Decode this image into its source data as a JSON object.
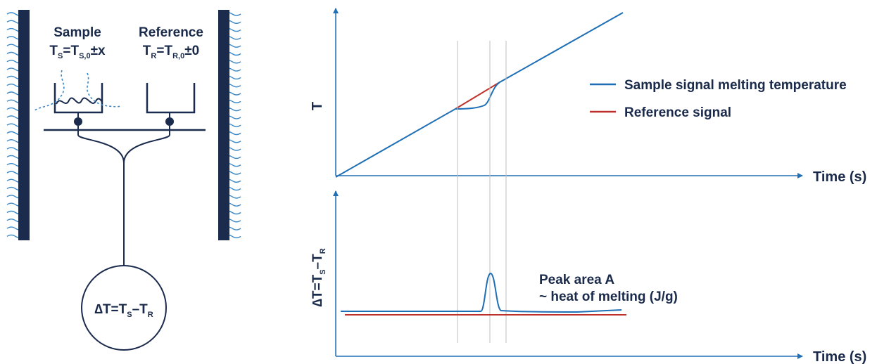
{
  "colors": {
    "navy": "#1b2b4d",
    "blue": "#1e6fb5",
    "red": "#c0302a",
    "water": "#3a88c8",
    "gridline": "#bfbfbf",
    "text": "#1a2a4a"
  },
  "apparatus": {
    "sample": {
      "name": "Sample",
      "eq_main": "T",
      "eq_sub1": "S",
      "eq_eq": "=T",
      "eq_sub2": "S,0",
      "eq_tail": "±x"
    },
    "reference": {
      "name": "Reference",
      "eq_main": "T",
      "eq_sub1": "R",
      "eq_eq": "=T",
      "eq_sub2": "R,0",
      "eq_tail": "±0"
    },
    "meter": {
      "prefix": "∆T=T",
      "sub1": "S",
      "minus": "–T",
      "sub2": "R"
    }
  },
  "top_plot": {
    "ylabel": "T",
    "xlabel": "Time (s)",
    "legend": [
      {
        "label": "Sample signal melting temperature",
        "color": "#1e6fb5"
      },
      {
        "label": "Reference signal",
        "color": "#c0302a"
      }
    ]
  },
  "bottom_plot": {
    "ylabel_main": "∆T=T",
    "ylabel_sub1": "S",
    "ylabel_minus": "–T",
    "ylabel_sub2": "R",
    "xlabel": "Time (s)",
    "annotation_line1": "Peak area A",
    "annotation_line2": "~ heat of melting (J/g)"
  }
}
